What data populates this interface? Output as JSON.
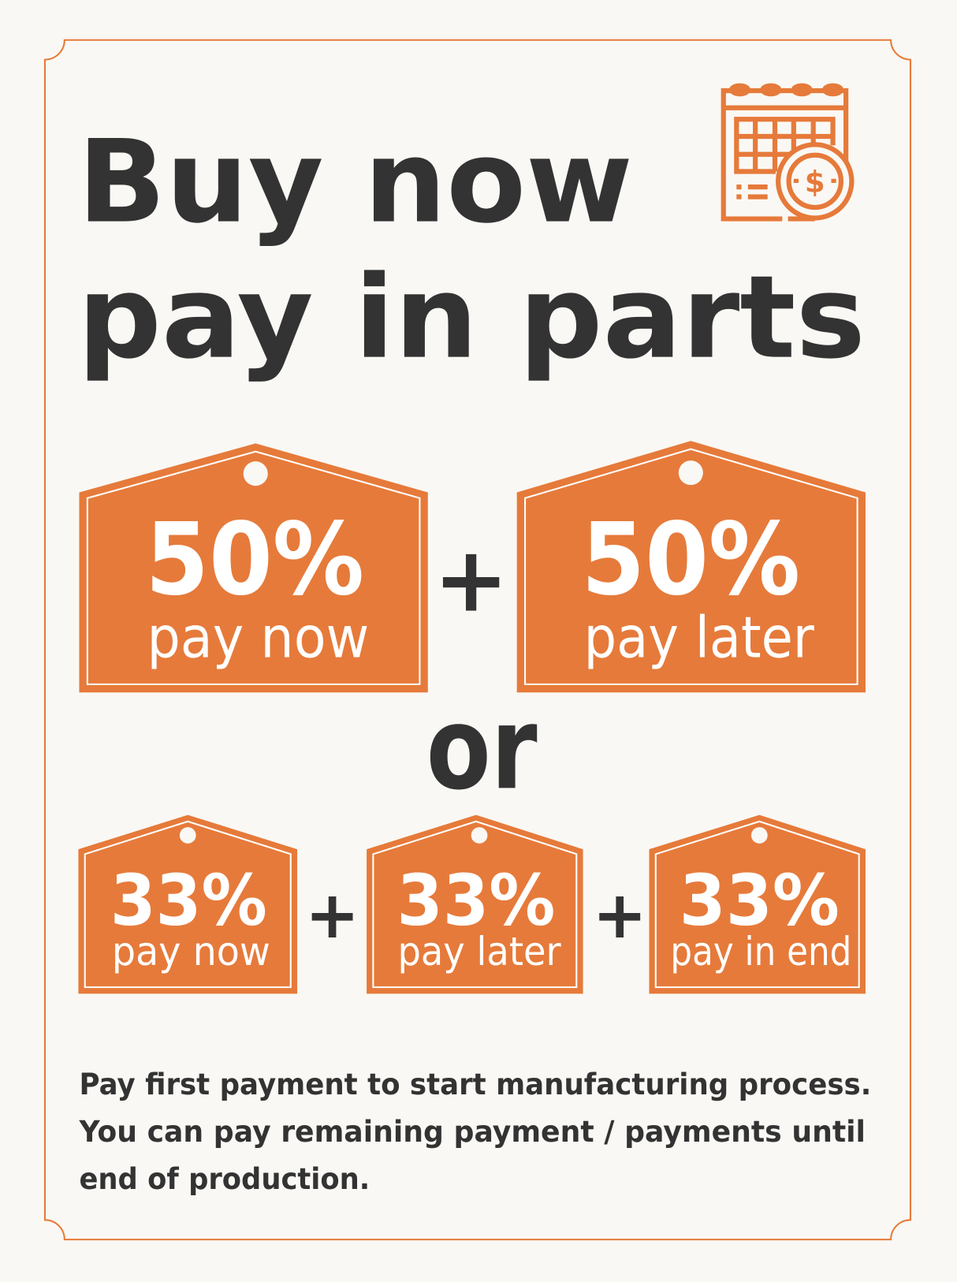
{
  "colors": {
    "accent": "#e67a3a",
    "text": "#333333",
    "background": "#faf8f4",
    "tag_text": "#ffffff"
  },
  "icon": "calendar-dollar-icon",
  "title": {
    "line1": "Buy now",
    "line2": "pay in parts"
  },
  "option1": {
    "tags": [
      {
        "percent": "50%",
        "label": "pay now"
      },
      {
        "percent": "50%",
        "label": "pay later"
      }
    ],
    "plus": "+"
  },
  "separator": "or",
  "option2": {
    "tags": [
      {
        "percent": "33%",
        "label": "pay now"
      },
      {
        "percent": "33%",
        "label": "pay later"
      },
      {
        "percent": "33%",
        "label": "pay in end"
      }
    ],
    "plus": "+"
  },
  "footer": {
    "lines": [
      "Pay first payment to start manufacturing process.",
      "You can pay remaining payment / payments until",
      "end of production."
    ]
  }
}
